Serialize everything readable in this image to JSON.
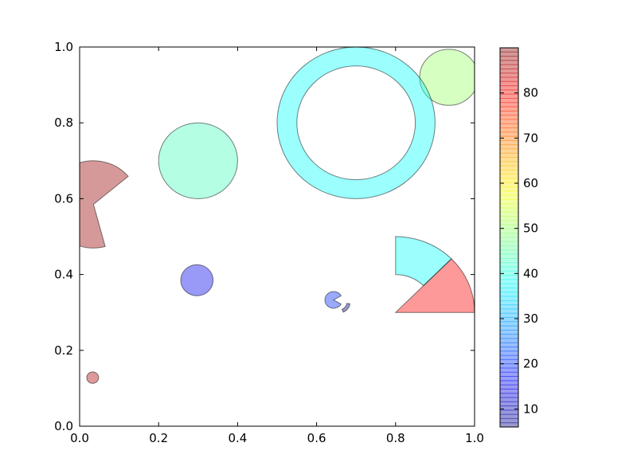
{
  "chart_data": {
    "type": "patch_collection",
    "title": "",
    "xlabel": "",
    "ylabel": "",
    "xlim": [
      0.0,
      1.0
    ],
    "ylim": [
      0.0,
      1.0
    ],
    "xticks": [
      "0.0",
      "0.2",
      "0.4",
      "0.6",
      "0.8",
      "1.0"
    ],
    "yticks": [
      "0.0",
      "0.2",
      "0.4",
      "0.6",
      "0.8",
      "1.0"
    ],
    "grid": false,
    "alpha": 0.4,
    "colormap": "jet",
    "colorbar": {
      "range": [
        6,
        90
      ],
      "ticks": [
        "10",
        "20",
        "30",
        "40",
        "50",
        "60",
        "70",
        "80"
      ]
    },
    "patches": [
      {
        "shape": "circle",
        "cx": 0.3,
        "cy": 0.7,
        "r": 0.1,
        "value": 43
      },
      {
        "shape": "circle",
        "cx": 0.935,
        "cy": 0.92,
        "r": 0.074,
        "value": 50
      },
      {
        "shape": "circle",
        "cx": 0.297,
        "cy": 0.385,
        "r": 0.041,
        "value": 15
      },
      {
        "shape": "circle",
        "cx": 0.033,
        "cy": 0.128,
        "r": 0.015,
        "value": 86
      },
      {
        "shape": "ring",
        "cx": 0.7,
        "cy": 0.8,
        "r": 0.2,
        "r_inner": 0.15,
        "value": 38
      },
      {
        "shape": "wedge",
        "cx": 0.035,
        "cy": 0.585,
        "r": 0.115,
        "theta1": 40,
        "theta2": 285,
        "value": 88
      },
      {
        "shape": "wedge",
        "cx": 0.8,
        "cy": 0.3,
        "r": 0.2,
        "theta1": 0,
        "theta2": 45,
        "value": 80
      },
      {
        "shape": "wedge",
        "cx": 0.8,
        "cy": 0.3,
        "r": 0.2,
        "r_inner": 0.1,
        "theta1": 45,
        "theta2": 90,
        "value": 38
      },
      {
        "shape": "wedge",
        "cx": 0.643,
        "cy": 0.333,
        "r": 0.022,
        "theta1": 30,
        "theta2": 330,
        "value": 20
      },
      {
        "shape": "wedge",
        "cx": 0.655,
        "cy": 0.328,
        "r": 0.03,
        "r_inner": 0.022,
        "theta1": 295,
        "theta2": 350,
        "value": 6
      }
    ]
  }
}
